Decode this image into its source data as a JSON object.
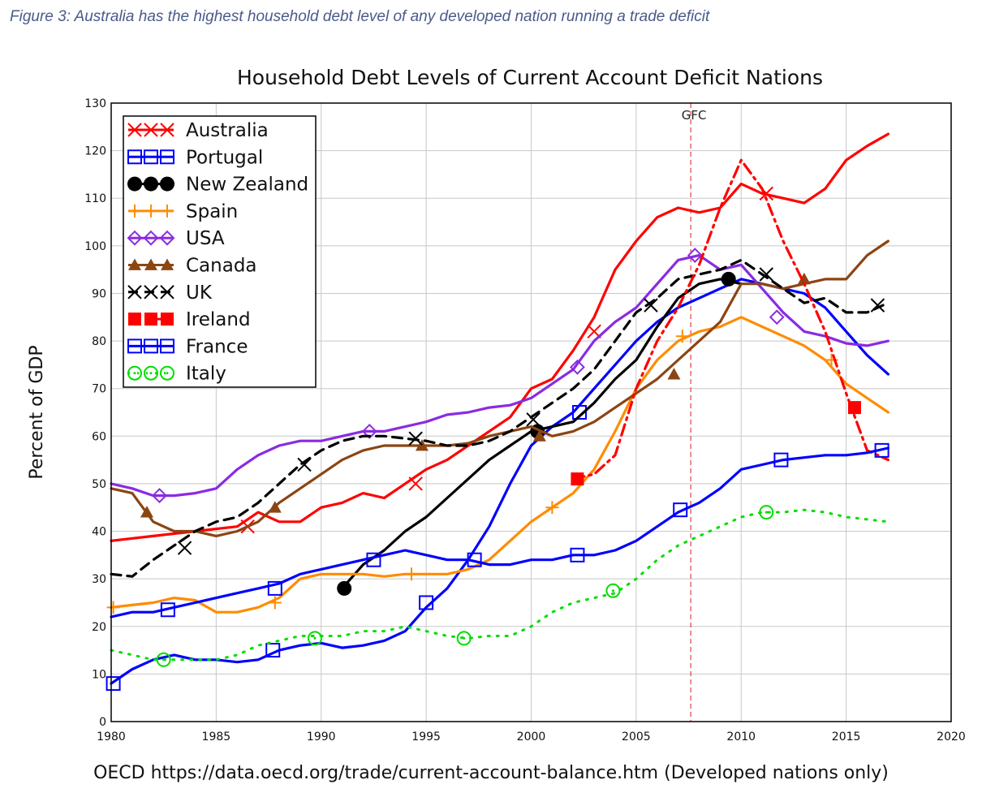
{
  "caption": "Figure 3: Australia has the highest household debt level of any developed nation running a trade deficit",
  "source": "OECD https://data.oecd.org/trade/current-account-balance.htm (Developed nations only)",
  "chart_data": {
    "type": "line",
    "title": "Household Debt Levels of Current Account Deficit Nations",
    "xlabel": "",
    "ylabel": "Percent of GDP",
    "xlim": [
      1980,
      2020
    ],
    "ylim": [
      0,
      130
    ],
    "xticks": [
      1980,
      1985,
      1990,
      1995,
      2000,
      2005,
      2010,
      2015,
      2020
    ],
    "yticks": [
      0,
      10,
      20,
      30,
      40,
      50,
      60,
      70,
      80,
      90,
      100,
      110,
      120,
      130
    ],
    "grid": true,
    "legend_position": "top-left",
    "annotations": [
      {
        "label": "GFC",
        "x": 2007.6
      }
    ],
    "series": [
      {
        "name": "Australia",
        "color": "#ff0000",
        "marker": "x",
        "dash": "solid",
        "x": [
          1980,
          1982,
          1984,
          1986,
          1987,
          1988,
          1989,
          1990,
          1991,
          1992,
          1993,
          1994,
          1995,
          1996,
          1997,
          1998,
          1999,
          2000,
          2001,
          2002,
          2003,
          2004,
          2005,
          2006,
          2007,
          2008,
          2009,
          2010,
          2011,
          2012,
          2013,
          2014,
          2015,
          2016,
          2017
        ],
        "y": [
          38,
          39,
          40,
          41,
          44,
          42,
          42,
          45,
          46,
          48,
          47,
          50,
          53,
          55,
          58,
          61,
          64,
          70,
          72,
          78,
          85,
          95,
          101,
          106,
          108,
          107,
          108,
          113,
          111,
          110,
          109,
          112,
          118,
          121,
          123.5
        ],
        "markers_x": [
          1986.5,
          1994.5,
          2003,
          2011.2
        ],
        "markers_y": [
          41,
          50,
          82,
          111
        ]
      },
      {
        "name": "Portugal",
        "color": "#0000ff",
        "marker": "square",
        "dash": "solid",
        "x": [
          1980,
          1981,
          1982,
          1983,
          1984,
          1985,
          1986,
          1987,
          1988,
          1989,
          1990,
          1991,
          1992,
          1993,
          1994,
          1995,
          1996,
          1997,
          1998,
          1999,
          2000,
          2001,
          2002,
          2003,
          2004,
          2005,
          2006,
          2007,
          2008,
          2009,
          2010,
          2011,
          2012,
          2013,
          2014,
          2015,
          2016,
          2017
        ],
        "y": [
          8,
          11,
          13,
          14,
          13,
          13,
          12.5,
          13,
          15,
          16,
          16.5,
          15.5,
          16,
          17,
          19,
          24,
          28,
          34,
          41,
          50,
          58,
          62,
          65,
          70,
          75,
          80,
          84,
          87,
          89,
          91,
          93,
          92,
          91,
          90,
          87,
          82,
          77,
          73
        ],
        "markers_x": [
          1980.1,
          1987.7,
          1995,
          2002.3
        ],
        "markers_y": [
          8,
          15,
          25,
          65
        ]
      },
      {
        "name": "New Zealand",
        "color": "#000000",
        "marker": "circle",
        "dash": "solid",
        "x": [
          1991,
          1992,
          1993,
          1994,
          1995,
          1996,
          1997,
          1998,
          1999,
          2000,
          2001,
          2002,
          2003,
          2004,
          2005,
          2006,
          2007,
          2008,
          2009,
          2010
        ],
        "y": [
          28,
          33,
          36,
          40,
          43,
          47,
          51,
          55,
          58,
          61,
          62,
          63,
          67,
          72,
          76,
          83,
          89,
          92,
          93,
          92
        ],
        "markers_x": [
          1991.1,
          2000.3,
          2009.4
        ],
        "markers_y": [
          28,
          61,
          93
        ]
      },
      {
        "name": "Spain",
        "color": "#ff8c00",
        "marker": "plus",
        "dash": "solid",
        "x": [
          1980,
          1981,
          1982,
          1983,
          1984,
          1985,
          1986,
          1987,
          1988,
          1989,
          1990,
          1991,
          1992,
          1993,
          1994,
          1995,
          1996,
          1997,
          1998,
          1999,
          2000,
          2001,
          2002,
          2003,
          2004,
          2005,
          2006,
          2007,
          2008,
          2009,
          2010,
          2011,
          2012,
          2013,
          2014,
          2015,
          2016,
          2017
        ],
        "y": [
          24,
          24.5,
          25,
          26,
          25.5,
          23,
          23,
          24,
          26,
          30,
          31,
          31,
          31,
          30.5,
          31,
          31,
          31,
          32,
          34,
          38,
          42,
          45,
          48,
          53,
          61,
          70,
          76,
          80,
          82,
          83,
          85,
          83,
          81,
          79,
          76,
          71,
          68,
          65
        ],
        "markers_x": [
          1980.1,
          1987.8,
          1994.3,
          2001,
          2007.2,
          2014.3
        ],
        "markers_y": [
          24,
          25,
          31,
          45,
          81,
          76
        ]
      },
      {
        "name": "USA",
        "color": "#8a2be2",
        "marker": "diamond",
        "dash": "solid",
        "x": [
          1980,
          1981,
          1982,
          1983,
          1984,
          1985,
          1986,
          1987,
          1988,
          1989,
          1990,
          1991,
          1992,
          1993,
          1994,
          1995,
          1996,
          1997,
          1998,
          1999,
          2000,
          2001,
          2002,
          2003,
          2004,
          2005,
          2006,
          2007,
          2008,
          2009,
          2010,
          2011,
          2012,
          2013,
          2014,
          2015,
          2016,
          2017
        ],
        "y": [
          50,
          49,
          47.5,
          47.5,
          48,
          49,
          53,
          56,
          58,
          59,
          59,
          60,
          61,
          61,
          62,
          63,
          64.5,
          65,
          66,
          66.5,
          68,
          71,
          74,
          80,
          84,
          87,
          92,
          97,
          98,
          95,
          96,
          91,
          86,
          82,
          81,
          79.5,
          79,
          80
        ],
        "markers_x": [
          1982.3,
          1992.3,
          2002.2,
          2007.8,
          2011.7
        ],
        "markers_y": [
          47.5,
          61,
          74.5,
          98,
          85
        ]
      },
      {
        "name": "Canada",
        "color": "#8b4513",
        "marker": "triangle",
        "dash": "solid",
        "x": [
          1980,
          1981,
          1982,
          1983,
          1984,
          1985,
          1986,
          1987,
          1988,
          1989,
          1990,
          1991,
          1992,
          1993,
          1994,
          1995,
          1996,
          1997,
          1998,
          1999,
          2000,
          2001,
          2002,
          2003,
          2004,
          2005,
          2006,
          2007,
          2008,
          2009,
          2010,
          2011,
          2012,
          2013,
          2014,
          2015,
          2016,
          2017
        ],
        "y": [
          49,
          48,
          42,
          40,
          40,
          39,
          40,
          42,
          46,
          49,
          52,
          55,
          57,
          58,
          58,
          58,
          58,
          58.5,
          60,
          61,
          62,
          60,
          61,
          63,
          66,
          69,
          72,
          76,
          80,
          84,
          92,
          92,
          91,
          92,
          93,
          93,
          98,
          101
        ],
        "markers_x": [
          1981.7,
          1987.8,
          1994.8,
          2000.4,
          2006.8,
          2013
        ],
        "markers_y": [
          44,
          45,
          58,
          60,
          73,
          93
        ]
      },
      {
        "name": "UK",
        "color": "#000000",
        "marker": "x",
        "dash": "dashed",
        "x": [
          1980,
          1981,
          1982,
          1983,
          1984,
          1985,
          1986,
          1987,
          1988,
          1989,
          1990,
          1991,
          1992,
          1993,
          1994,
          1995,
          1996,
          1997,
          1998,
          1999,
          2000,
          2001,
          2002,
          2003,
          2004,
          2005,
          2006,
          2007,
          2008,
          2009,
          2010,
          2011,
          2012,
          2013,
          2014,
          2015,
          2016,
          2017
        ],
        "y": [
          31,
          30.5,
          34,
          37,
          40,
          42,
          43,
          46,
          50,
          54,
          57,
          59,
          60,
          60,
          59.5,
          59,
          58,
          58,
          59,
          61,
          64,
          67,
          70,
          74,
          80,
          86,
          89,
          93,
          94,
          95,
          97,
          94,
          91,
          88,
          89,
          86,
          86,
          88
        ],
        "markers_x": [
          1983.5,
          1989.2,
          1994.5,
          2000.1,
          2005.7,
          2011.2,
          2016.5
        ],
        "markers_y": [
          36.5,
          54,
          59.5,
          63.5,
          87.5,
          94,
          87.5
        ]
      },
      {
        "name": "Ireland",
        "color": "#ff0000",
        "marker": "square-filled",
        "dash": "dashdot",
        "x": [
          2002,
          2003,
          2004,
          2005,
          2006,
          2007,
          2008,
          2009,
          2010,
          2011,
          2012,
          2013,
          2014,
          2015,
          2016,
          2017
        ],
        "y": [
          51,
          52,
          56,
          70,
          80,
          87,
          96,
          108,
          118,
          112,
          101,
          92,
          82,
          69,
          57,
          55
        ],
        "markers_x": [
          2002.2,
          2015.4
        ],
        "markers_y": [
          51,
          66
        ]
      },
      {
        "name": "France",
        "color": "#0000ff",
        "marker": "square",
        "dash": "solid",
        "x": [
          1980,
          1981,
          1982,
          1983,
          1984,
          1985,
          1986,
          1987,
          1988,
          1989,
          1990,
          1991,
          1992,
          1993,
          1994,
          1995,
          1996,
          1997,
          1998,
          1999,
          2000,
          2001,
          2002,
          2003,
          2004,
          2005,
          2006,
          2007,
          2008,
          2009,
          2010,
          2011,
          2012,
          2013,
          2014,
          2015,
          2016,
          2017
        ],
        "y": [
          22,
          23,
          23,
          24,
          25,
          26,
          27,
          28,
          29,
          31,
          32,
          33,
          34,
          35,
          36,
          35,
          34,
          34,
          33,
          33,
          34,
          34,
          35,
          35,
          36,
          38,
          41,
          44,
          46,
          49,
          53,
          54,
          55,
          55.5,
          56,
          56,
          56.5,
          57.5
        ],
        "markers_x": [
          1982.7,
          1987.8,
          1992.5,
          1997.3,
          2002.2,
          2007.1,
          2011.9,
          2016.7
        ],
        "markers_y": [
          23.5,
          28,
          34,
          34,
          35,
          44.5,
          55,
          57
        ]
      },
      {
        "name": "Italy",
        "color": "#00dd00",
        "marker": "circle-open",
        "dash": "dotted",
        "x": [
          1980,
          1981,
          1982,
          1983,
          1984,
          1985,
          1986,
          1987,
          1988,
          1989,
          1990,
          1991,
          1992,
          1993,
          1994,
          1995,
          1996,
          1997,
          1998,
          1999,
          2000,
          2001,
          2002,
          2003,
          2004,
          2005,
          2006,
          2007,
          2008,
          2009,
          2010,
          2011,
          2012,
          2013,
          2014,
          2015,
          2016,
          2017
        ],
        "y": [
          15,
          14,
          13,
          13,
          13,
          13,
          14,
          16,
          17,
          18,
          18,
          18,
          19,
          19,
          20,
          19,
          18,
          17.5,
          18,
          18,
          20,
          23,
          25,
          26,
          27,
          30,
          34,
          37,
          39,
          41,
          43,
          44,
          44,
          44.5,
          44,
          43,
          42.5,
          42
        ],
        "markers_x": [
          1982.5,
          1989.7,
          1996.8,
          2003.9,
          2011.2
        ],
        "markers_y": [
          13,
          17.5,
          17.5,
          27.5,
          44
        ]
      }
    ]
  }
}
